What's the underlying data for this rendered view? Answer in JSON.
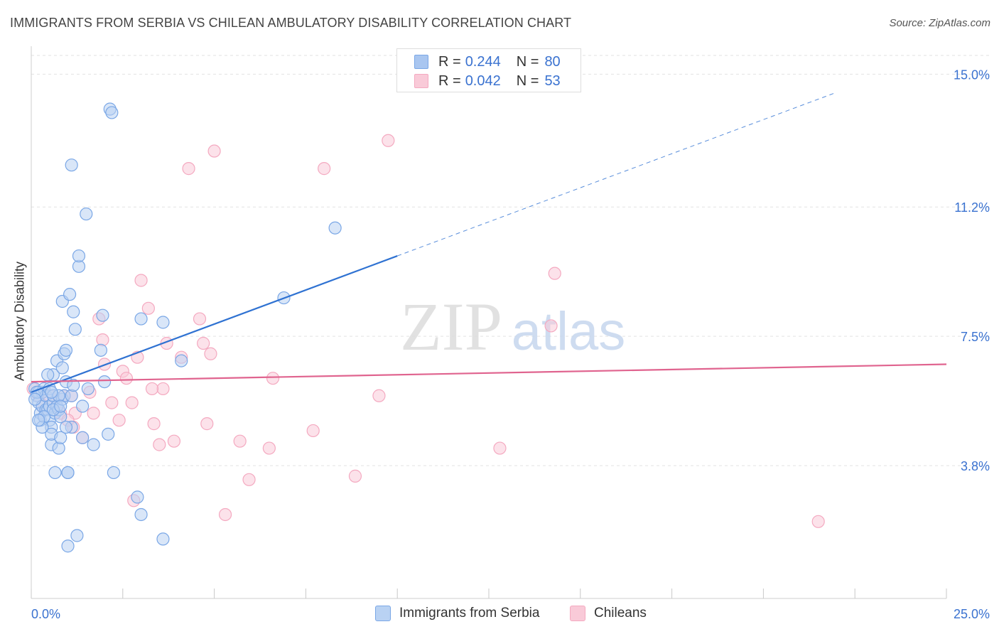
{
  "header": {
    "title": "IMMIGRANTS FROM SERBIA VS CHILEAN AMBULATORY DISABILITY CORRELATION CHART",
    "source": "Source: ZipAtlas.com"
  },
  "watermark": {
    "zip": "ZIP",
    "atlas": "atlas"
  },
  "legend": {
    "rows": [
      {
        "r_label": "R =",
        "r_value": "0.244",
        "n_label": "N =",
        "n_value": "80",
        "color": "#a9c6f0"
      },
      {
        "r_label": "R =",
        "r_value": "0.042",
        "n_label": "N =",
        "n_value": "53",
        "color": "#f6b8cb"
      }
    ]
  },
  "bottom_legend": {
    "series1": "Immigrants from Serbia",
    "series2": "Chileans"
  },
  "chart_data": {
    "type": "scatter",
    "title": "IMMIGRANTS FROM SERBIA VS CHILEAN AMBULATORY DISABILITY CORRELATION CHART",
    "xlabel": "",
    "ylabel": "Ambulatory Disability",
    "xlim": [
      0,
      25
    ],
    "ylim": [
      0,
      15.8
    ],
    "x_tick_labels": [
      "0.0%",
      "25.0%"
    ],
    "y_ticks": [
      3.8,
      7.5,
      11.2,
      15.0
    ],
    "y_tick_labels": [
      "3.8%",
      "7.5%",
      "11.2%",
      "15.0%"
    ],
    "grid": true,
    "legend_position": "top-center",
    "series": [
      {
        "name": "Immigrants from Serbia",
        "color": "#7aa7e6",
        "line_color": "#2f72d2",
        "trend": {
          "x": [
            0,
            10
          ],
          "y": [
            5.9,
            9.8
          ],
          "extend_to_x": 22
        },
        "points": [
          [
            0.1,
            6.0
          ],
          [
            0.15,
            5.8
          ],
          [
            0.2,
            5.9
          ],
          [
            0.2,
            5.6
          ],
          [
            0.25,
            5.3
          ],
          [
            0.25,
            5.1
          ],
          [
            0.3,
            5.5
          ],
          [
            0.3,
            5.9
          ],
          [
            0.35,
            6.0
          ],
          [
            0.4,
            5.4
          ],
          [
            0.4,
            5.8
          ],
          [
            0.45,
            5.4
          ],
          [
            0.5,
            5.1
          ],
          [
            0.5,
            5.5
          ],
          [
            0.5,
            6.0
          ],
          [
            0.55,
            4.9
          ],
          [
            0.55,
            4.4
          ],
          [
            0.55,
            4.7
          ],
          [
            0.6,
            5.6
          ],
          [
            0.6,
            5.8
          ],
          [
            0.6,
            6.4
          ],
          [
            0.65,
            5.3
          ],
          [
            0.65,
            3.6
          ],
          [
            0.7,
            5.5
          ],
          [
            0.7,
            6.8
          ],
          [
            0.75,
            5.4
          ],
          [
            0.75,
            4.3
          ],
          [
            0.8,
            4.6
          ],
          [
            0.8,
            5.2
          ],
          [
            0.85,
            5.7
          ],
          [
            0.85,
            6.6
          ],
          [
            0.85,
            8.5
          ],
          [
            0.9,
            5.8
          ],
          [
            0.9,
            7.0
          ],
          [
            0.95,
            7.1
          ],
          [
            0.95,
            6.2
          ],
          [
            1.0,
            3.6
          ],
          [
            1.0,
            1.5
          ],
          [
            1.0,
            3.6
          ],
          [
            1.05,
            8.7
          ],
          [
            1.1,
            5.8
          ],
          [
            1.1,
            4.9
          ],
          [
            1.1,
            12.4
          ],
          [
            1.15,
            8.2
          ],
          [
            1.2,
            7.7
          ],
          [
            1.25,
            1.8
          ],
          [
            1.3,
            9.5
          ],
          [
            1.3,
            9.8
          ],
          [
            1.4,
            5.5
          ],
          [
            1.4,
            4.6
          ],
          [
            1.5,
            11.0
          ],
          [
            1.55,
            6.0
          ],
          [
            1.7,
            4.4
          ],
          [
            1.9,
            7.1
          ],
          [
            1.95,
            8.1
          ],
          [
            2.0,
            6.2
          ],
          [
            2.1,
            4.7
          ],
          [
            2.15,
            14.0
          ],
          [
            2.2,
            13.9
          ],
          [
            2.25,
            3.6
          ],
          [
            2.9,
            2.9
          ],
          [
            3.0,
            8.0
          ],
          [
            3.0,
            2.4
          ],
          [
            3.6,
            1.7
          ],
          [
            3.6,
            7.9
          ],
          [
            4.1,
            6.8
          ],
          [
            6.9,
            8.6
          ],
          [
            8.3,
            10.6
          ],
          [
            0.15,
            5.9
          ],
          [
            0.35,
            5.2
          ],
          [
            0.6,
            5.4
          ],
          [
            0.75,
            5.8
          ],
          [
            0.95,
            4.9
          ],
          [
            1.15,
            6.1
          ],
          [
            0.45,
            6.4
          ],
          [
            0.3,
            4.9
          ],
          [
            0.2,
            5.1
          ],
          [
            0.1,
            5.7
          ],
          [
            0.55,
            5.9
          ],
          [
            0.8,
            5.5
          ]
        ]
      },
      {
        "name": "Chileans",
        "color": "#f4a9c0",
        "line_color": "#e0648f",
        "trend": {
          "x": [
            0,
            25
          ],
          "y": [
            6.2,
            6.7
          ]
        },
        "points": [
          [
            0.05,
            6.0
          ],
          [
            0.2,
            5.8
          ],
          [
            0.3,
            5.5
          ],
          [
            0.5,
            5.8
          ],
          [
            0.6,
            5.6
          ],
          [
            0.8,
            5.3
          ],
          [
            0.9,
            5.8
          ],
          [
            1.1,
            5.8
          ],
          [
            1.15,
            4.9
          ],
          [
            1.2,
            5.3
          ],
          [
            1.4,
            4.6
          ],
          [
            1.6,
            5.9
          ],
          [
            1.7,
            5.3
          ],
          [
            1.85,
            8.0
          ],
          [
            1.95,
            7.4
          ],
          [
            2.0,
            6.7
          ],
          [
            2.2,
            5.6
          ],
          [
            2.4,
            5.1
          ],
          [
            2.5,
            6.5
          ],
          [
            2.6,
            6.3
          ],
          [
            2.75,
            5.6
          ],
          [
            2.8,
            2.8
          ],
          [
            2.9,
            6.9
          ],
          [
            3.0,
            9.1
          ],
          [
            3.2,
            8.3
          ],
          [
            3.35,
            5.0
          ],
          [
            3.5,
            4.4
          ],
          [
            3.6,
            6.0
          ],
          [
            3.7,
            7.3
          ],
          [
            3.9,
            4.5
          ],
          [
            4.1,
            6.9
          ],
          [
            4.3,
            12.3
          ],
          [
            4.6,
            8.0
          ],
          [
            4.7,
            7.3
          ],
          [
            4.8,
            5.0
          ],
          [
            4.9,
            7.0
          ],
          [
            5.0,
            12.8
          ],
          [
            5.3,
            2.4
          ],
          [
            5.7,
            4.5
          ],
          [
            5.95,
            3.4
          ],
          [
            6.6,
            6.3
          ],
          [
            6.5,
            4.3
          ],
          [
            7.7,
            4.8
          ],
          [
            8.0,
            12.3
          ],
          [
            8.85,
            3.5
          ],
          [
            9.5,
            5.8
          ],
          [
            9.75,
            13.1
          ],
          [
            12.8,
            4.3
          ],
          [
            14.2,
            7.8
          ],
          [
            14.3,
            9.3
          ],
          [
            21.5,
            2.2
          ],
          [
            3.3,
            6.0
          ],
          [
            1.0,
            5.1
          ]
        ]
      }
    ]
  }
}
